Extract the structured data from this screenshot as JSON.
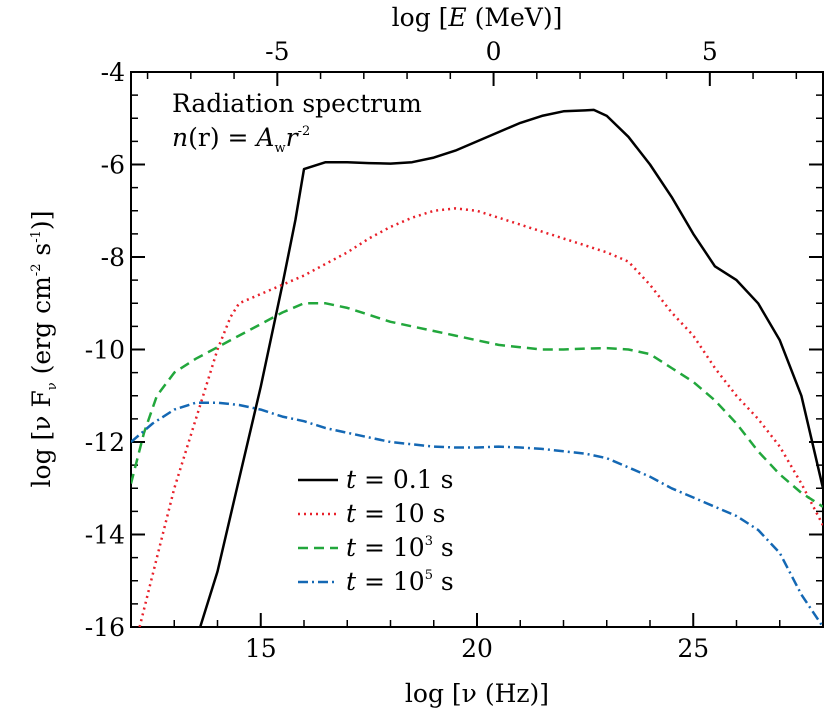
{
  "chart_data": {
    "type": "line",
    "xlabel": "log [ν (Hz)]",
    "ylabel": "log [ν F",
    "ylabel_sub": "ν",
    "ylabel_rest": " (erg cm",
    "ylabel_sup1": "-2",
    "ylabel_mid": " s",
    "ylabel_sup2": "-1",
    "ylabel_end": ")]",
    "x2label_pre": "log [",
    "x2label_var": "E",
    "x2label_post": " (MeV)]",
    "annotation_line1": "Radiation spectrum",
    "annotation_line2_pre": "n",
    "annotation_line2_mid": "(r) = ",
    "annotation_line2_A": "A",
    "annotation_line2_sub": "w",
    "annotation_line2_r": "r",
    "annotation_line2_sup": "-2",
    "xlim": [
      12,
      28
    ],
    "ylim": [
      -16,
      -4
    ],
    "x_ticks": [
      15,
      20,
      25
    ],
    "x_tick_labels": [
      "15",
      "20",
      "25"
    ],
    "y_ticks": [
      -16,
      -14,
      -12,
      -10,
      -8,
      -6,
      -4
    ],
    "y_tick_labels": [
      "-16",
      "-14",
      "-12",
      "-10",
      "-8",
      "-6",
      "-4"
    ],
    "x2_ticks": [
      -5,
      0,
      5
    ],
    "x2_tick_labels": [
      "-5",
      "0",
      "5"
    ],
    "legend_placement": "bottom-center",
    "series": [
      {
        "name": "t = 0.1 s",
        "legend_t": "t",
        "legend_pre": " = 0.1 s",
        "legend_sup": "",
        "legend_post": "",
        "color": "#000000",
        "dash": "",
        "x": [
          13.6,
          14.0,
          14.5,
          15.0,
          15.5,
          15.8,
          16.0,
          16.5,
          17.0,
          17.5,
          18.0,
          18.5,
          19.0,
          19.5,
          20.0,
          20.5,
          21.0,
          21.5,
          22.0,
          22.5,
          22.7,
          23.0,
          23.5,
          24.0,
          24.5,
          25.0,
          25.5,
          26.0,
          26.5,
          27.0,
          27.5,
          28.0
        ],
        "y": [
          -16.0,
          -14.8,
          -12.8,
          -10.8,
          -8.6,
          -7.2,
          -6.1,
          -5.95,
          -5.95,
          -5.97,
          -5.98,
          -5.95,
          -5.85,
          -5.7,
          -5.5,
          -5.3,
          -5.1,
          -4.95,
          -4.85,
          -4.83,
          -4.82,
          -4.95,
          -5.4,
          -6.0,
          -6.7,
          -7.5,
          -8.2,
          -8.5,
          -9.0,
          -9.8,
          -11.0,
          -13.0
        ]
      },
      {
        "name": "t = 10 s",
        "legend_t": "t",
        "legend_pre": " = 10 s",
        "legend_sup": "",
        "legend_post": "",
        "color": "#e8202a",
        "dash": "2,4",
        "x": [
          12.2,
          12.6,
          13.0,
          13.5,
          14.0,
          14.3,
          14.5,
          15.0,
          15.5,
          16.0,
          16.5,
          17.0,
          17.5,
          18.0,
          18.5,
          19.0,
          19.5,
          20.0,
          20.5,
          21.0,
          21.5,
          22.0,
          22.5,
          23.0,
          23.5,
          24.0,
          24.5,
          25.0,
          25.5,
          26.0,
          26.5,
          27.0,
          27.5,
          28.0
        ],
        "y": [
          -16.0,
          -14.5,
          -13.0,
          -11.5,
          -10.0,
          -9.3,
          -9.0,
          -8.8,
          -8.6,
          -8.4,
          -8.15,
          -7.9,
          -7.6,
          -7.35,
          -7.15,
          -7.0,
          -6.95,
          -7.0,
          -7.15,
          -7.3,
          -7.45,
          -7.6,
          -7.75,
          -7.9,
          -8.1,
          -8.6,
          -9.2,
          -9.7,
          -10.4,
          -11.0,
          -11.5,
          -12.1,
          -12.9,
          -13.8
        ]
      },
      {
        "name": "t = 10^3 s",
        "legend_t": "t",
        "legend_pre": " = 10",
        "legend_sup": "3",
        "legend_post": " s",
        "color": "#22a73c",
        "dash": "10,6",
        "x": [
          12.0,
          12.3,
          12.6,
          13.0,
          13.5,
          14.0,
          14.5,
          15.0,
          15.5,
          16.0,
          16.5,
          17.0,
          17.5,
          18.0,
          18.5,
          19.0,
          19.5,
          20.0,
          20.5,
          21.0,
          21.5,
          22.0,
          22.5,
          23.0,
          23.5,
          24.0,
          24.5,
          25.0,
          25.5,
          26.0,
          26.5,
          27.0,
          27.5,
          28.0
        ],
        "y": [
          -12.9,
          -11.8,
          -11.0,
          -10.5,
          -10.2,
          -9.95,
          -9.7,
          -9.45,
          -9.2,
          -9.0,
          -9.0,
          -9.1,
          -9.25,
          -9.4,
          -9.5,
          -9.6,
          -9.7,
          -9.8,
          -9.9,
          -9.95,
          -10.0,
          -10.0,
          -9.98,
          -9.97,
          -10.0,
          -10.1,
          -10.4,
          -10.7,
          -11.1,
          -11.6,
          -12.2,
          -12.7,
          -13.1,
          -13.4
        ]
      },
      {
        "name": "t = 10^5 s",
        "legend_t": "t",
        "legend_pre": " = 10",
        "legend_sup": "5",
        "legend_post": " s",
        "color": "#1468b4",
        "dash": "10,4,2,4",
        "x": [
          12.0,
          12.5,
          13.0,
          13.5,
          14.0,
          14.5,
          15.0,
          15.5,
          16.0,
          16.5,
          17.0,
          17.5,
          18.0,
          18.5,
          19.0,
          19.5,
          20.0,
          20.5,
          21.0,
          21.5,
          22.0,
          22.5,
          23.0,
          23.5,
          24.0,
          24.5,
          25.0,
          25.5,
          26.0,
          26.5,
          27.0,
          27.5,
          28.0
        ],
        "y": [
          -12.0,
          -11.6,
          -11.3,
          -11.15,
          -11.15,
          -11.2,
          -11.3,
          -11.45,
          -11.55,
          -11.7,
          -11.8,
          -11.9,
          -12.0,
          -12.05,
          -12.1,
          -12.12,
          -12.12,
          -12.1,
          -12.12,
          -12.15,
          -12.2,
          -12.25,
          -12.35,
          -12.55,
          -12.75,
          -13.0,
          -13.2,
          -13.4,
          -13.6,
          -13.9,
          -14.4,
          -15.3,
          -16.0
        ]
      }
    ]
  }
}
